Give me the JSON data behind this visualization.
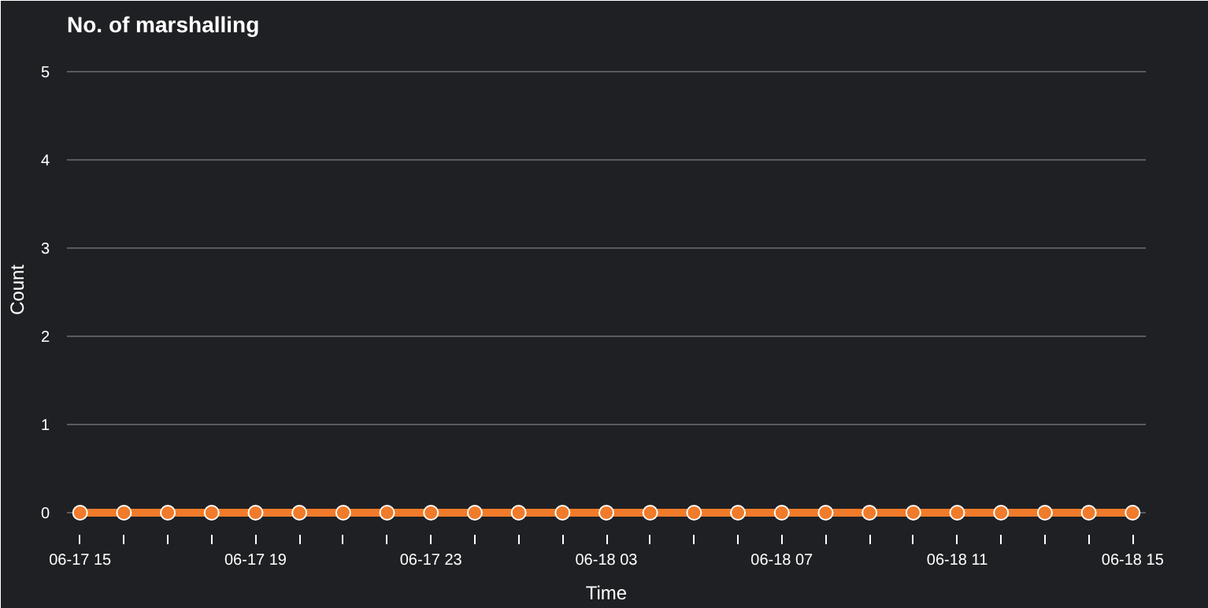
{
  "chart_data": {
    "type": "line",
    "title": "No. of marshalling",
    "xlabel": "Time",
    "ylabel": "Count",
    "categories": [
      "06-17 15",
      null,
      null,
      null,
      "06-17 19",
      null,
      null,
      null,
      "06-17 23",
      null,
      null,
      null,
      "06-18 03",
      null,
      null,
      null,
      "06-18 07",
      null,
      null,
      null,
      "06-18 11",
      null,
      null,
      null,
      "06-18 15"
    ],
    "series": [
      {
        "color": "#f07b2a",
        "values": [
          0,
          0,
          0,
          0,
          0,
          0,
          0,
          0,
          0,
          0,
          0,
          0,
          0,
          0,
          0,
          0,
          0,
          0,
          0,
          0,
          0,
          0,
          0,
          0,
          0
        ]
      }
    ],
    "ylim": [
      -0.25,
      5.3
    ],
    "yticks": [
      0,
      1,
      2,
      3,
      4,
      5
    ],
    "grid": "y",
    "marker": "circle",
    "line_style": "solid"
  }
}
